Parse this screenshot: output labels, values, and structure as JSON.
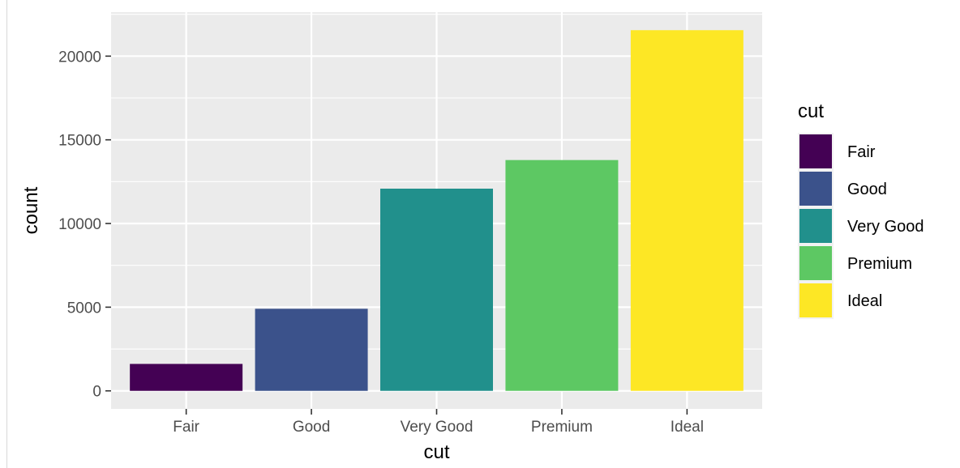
{
  "chart_data": {
    "type": "bar",
    "categories": [
      "Fair",
      "Good",
      "Very Good",
      "Premium",
      "Ideal"
    ],
    "values": [
      1610,
      4906,
      12082,
      13791,
      21551
    ],
    "colors": [
      "#440154",
      "#3B528B",
      "#21908C",
      "#5DC863",
      "#FDE725"
    ],
    "xlabel": "cut",
    "ylabel": "count",
    "ylim": [
      -1077.55,
      22628.55
    ],
    "yticks": [
      0,
      5000,
      10000,
      15000,
      20000
    ],
    "ytick_labels": [
      "0",
      "5000",
      "10000",
      "15000",
      "20000"
    ],
    "grid": true,
    "legend": {
      "title": "cut",
      "placement": "right",
      "entries": [
        "Fair",
        "Good",
        "Very Good",
        "Premium",
        "Ideal"
      ]
    }
  }
}
